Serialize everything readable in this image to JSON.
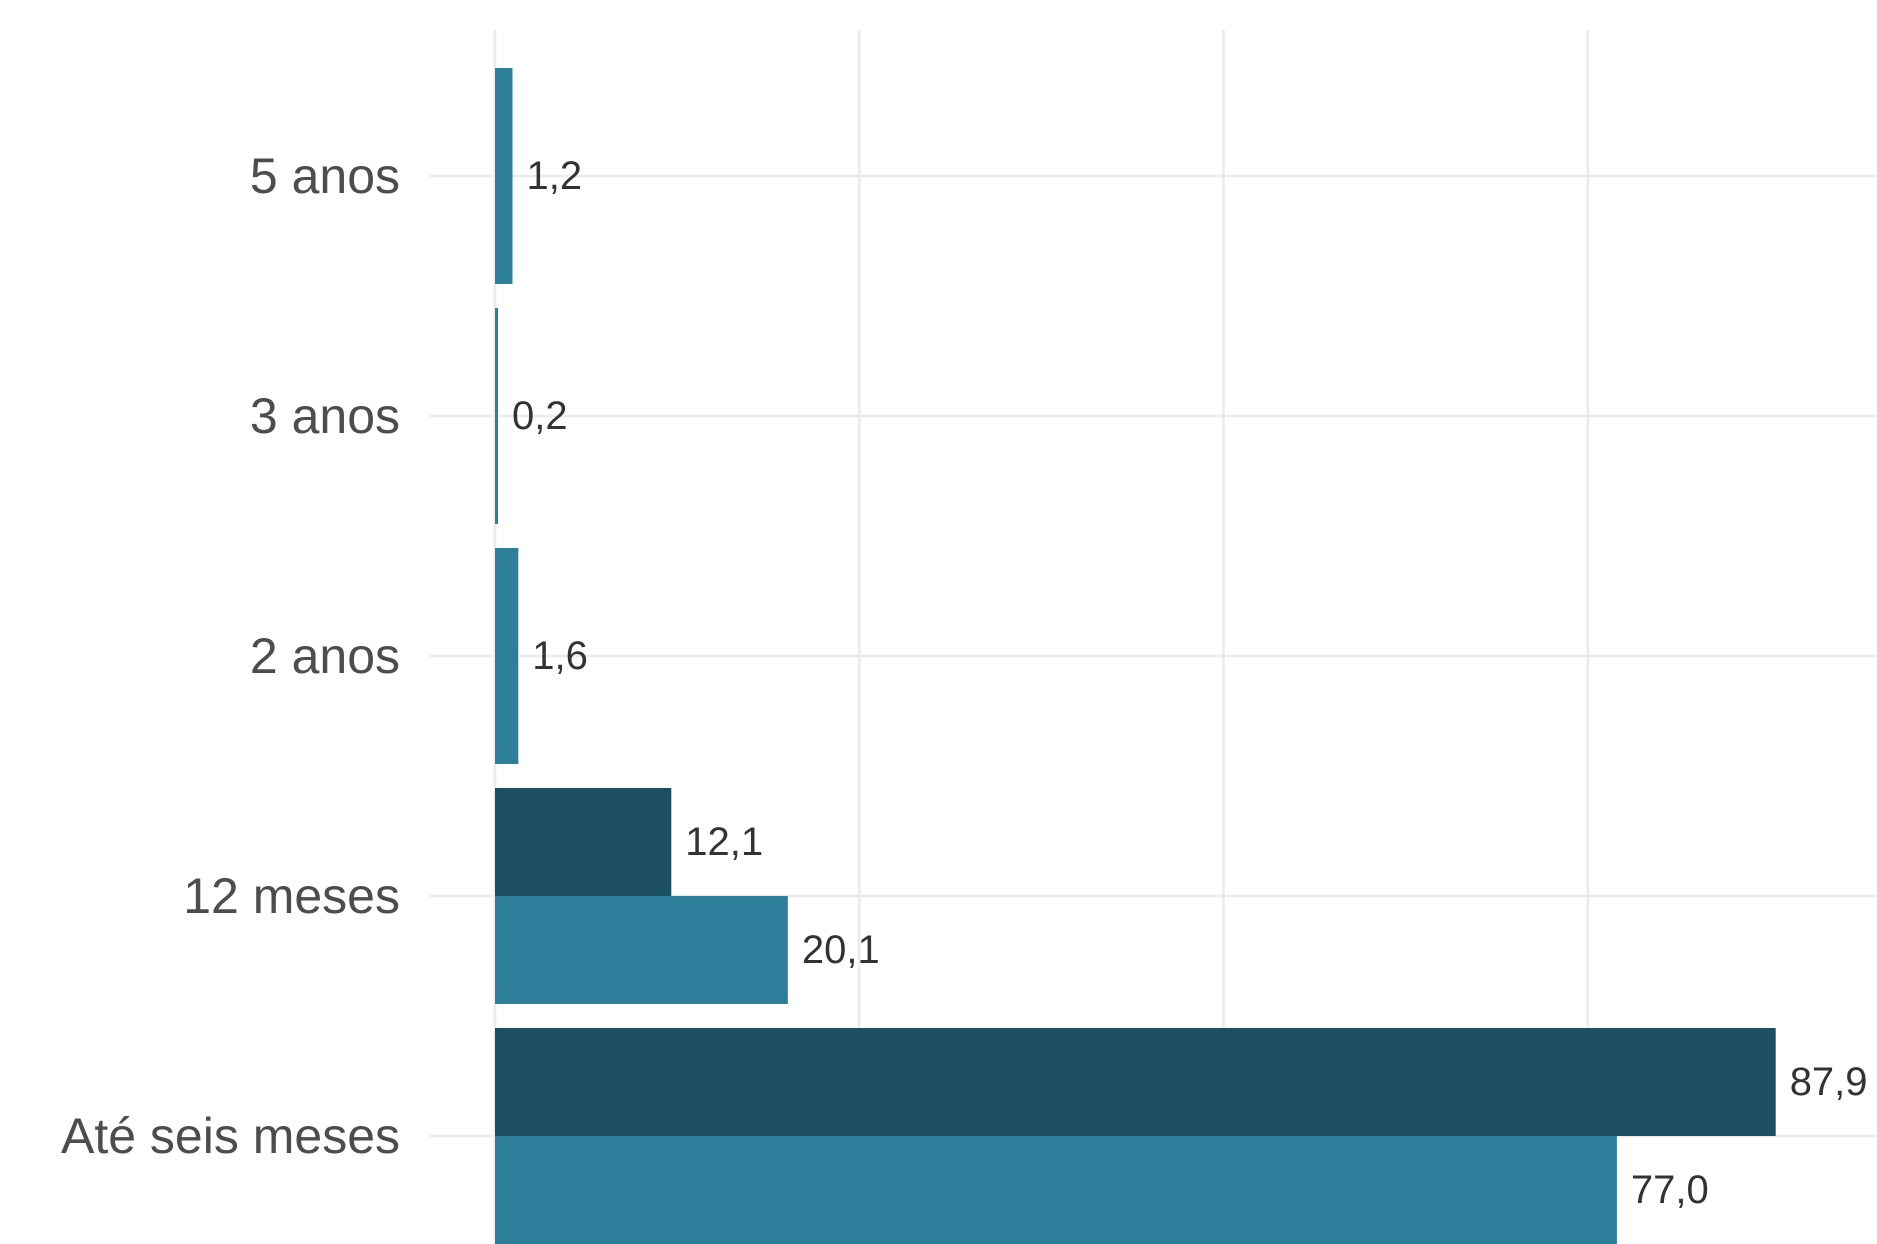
{
  "chart_data": {
    "type": "bar",
    "orientation": "horizontal",
    "categories": [
      "5 anos",
      "3 anos",
      "2 anos",
      "12 meses",
      "Até seis meses"
    ],
    "series": [
      {
        "color": "#1c4f63",
        "values": [
          null,
          null,
          null,
          12.1,
          87.9
        ],
        "labels": [
          "",
          "",
          "",
          "12,1",
          "87,9"
        ]
      },
      {
        "color": "#2e7e9c",
        "values": [
          1.2,
          0.2,
          1.6,
          20.1,
          77.0
        ],
        "labels": [
          "1,2",
          "0,2",
          "1,6",
          "20,1",
          "77,0"
        ]
      }
    ],
    "xlim": [
      0,
      95
    ],
    "x_gridlines": [
      0,
      25,
      50,
      75
    ],
    "grid": true,
    "legend": "none",
    "title": "",
    "xlabel": "",
    "ylabel": ""
  }
}
